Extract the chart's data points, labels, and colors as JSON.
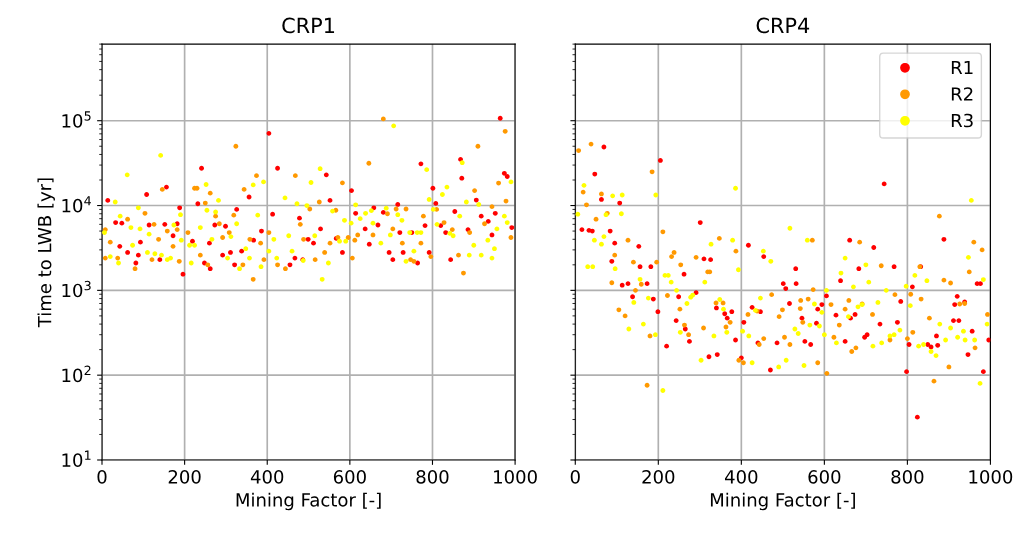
{
  "chart_data": [
    {
      "type": "scatter",
      "title": "CRP1",
      "xlabel": "Mining Factor [-]",
      "ylabel": "Time to LWB [yr]",
      "log": "y",
      "grid": true,
      "marker": "circle",
      "xlim": [
        0,
        1000
      ],
      "xticks": [
        0,
        200,
        400,
        600,
        800,
        1000
      ],
      "ylim": [
        10,
        800000
      ],
      "yticks": [
        {
          "value": 10,
          "label": "10$^{1}$"
        },
        {
          "value": 100,
          "label": "10$^{2}$"
        },
        {
          "value": 1000,
          "label": "10$^{3}$"
        },
        {
          "value": 10000,
          "label": "10$^{4}$"
        },
        {
          "value": 100000,
          "label": "10$^{5}$"
        }
      ],
      "series": [
        {
          "color": "#ff0000",
          "x": [
            14,
            33,
            48,
            108,
            114,
            43,
            62,
            82,
            88,
            93,
            140,
            152,
            156,
            172,
            182,
            188,
            196,
            219,
            232,
            241,
            248,
            260,
            262,
            273,
            292,
            299,
            311,
            321,
            326,
            338,
            356,
            367,
            386,
            404,
            413,
            425,
            455,
            467,
            478,
            486,
            499,
            512,
            529,
            543,
            552,
            567,
            582,
            604,
            614,
            637,
            647,
            658,
            668,
            681,
            695,
            704,
            716,
            721,
            729,
            750,
            764,
            772,
            782,
            792,
            801,
            808,
            820,
            832,
            844,
            854,
            868,
            871,
            886,
            906,
            918,
            935,
            944,
            952,
            964,
            974,
            981,
            992
          ],
          "values": [
            11500,
            6300,
            6200,
            13500,
            5900,
            3300,
            2800,
            2100,
            2600,
            3700,
            2300,
            6000,
            16500,
            4400,
            6100,
            9400,
            1550,
            3800,
            10500,
            27500,
            2100,
            3600,
            1800,
            5900,
            2600,
            5700,
            2800,
            2000,
            9000,
            2900,
            12600,
            3900,
            5000,
            71000,
            7900,
            27500,
            2000,
            2400,
            7100,
            2300,
            4000,
            3600,
            5300,
            23000,
            11500,
            4100,
            2800,
            15000,
            8100,
            5300,
            3500,
            9400,
            5900,
            8300,
            2800,
            2300,
            10300,
            4800,
            2800,
            4800,
            2100,
            31000,
            5800,
            2800,
            16000,
            10600,
            5800,
            4800,
            2300,
            8500,
            35000,
            21000,
            5200,
            11600,
            7500,
            6500,
            4500,
            8100,
            107000,
            24000,
            22000,
            5500
          ]
        },
        {
          "color": "#ff9900",
          "x": [
            8,
            20,
            8,
            38,
            62,
            80,
            104,
            121,
            126,
            137,
            146,
            158,
            172,
            182,
            187,
            208,
            224,
            230,
            238,
            250,
            262,
            256,
            275,
            284,
            292,
            308,
            319,
            324,
            341,
            344,
            358,
            366,
            374,
            384,
            392,
            404,
            425,
            444,
            468,
            480,
            488,
            503,
            516,
            526,
            539,
            552,
            566,
            571,
            582,
            596,
            606,
            612,
            619,
            646,
            656,
            681,
            691,
            704,
            712,
            727,
            736,
            747,
            755,
            772,
            778,
            796,
            810,
            828,
            848,
            863,
            875,
            890,
            902,
            910,
            926,
            944,
            960,
            976,
            978,
            990
          ],
          "values": [
            5200,
            3700,
            2400,
            2400,
            6900,
            1800,
            8100,
            2300,
            6000,
            4000,
            15500,
            5000,
            3300,
            5200,
            2200,
            4800,
            16000,
            16000,
            2600,
            10700,
            14000,
            2000,
            7500,
            6100,
            4200,
            4800,
            7700,
            50000,
            2000,
            15500,
            4000,
            1350,
            22500,
            3600,
            2300,
            4800,
            2000,
            1800,
            22500,
            6000,
            4000,
            9100,
            2300,
            11000,
            2800,
            3600,
            8800,
            4200,
            18500,
            4200,
            2400,
            3900,
            4500,
            31500,
            4500,
            105000,
            8000,
            5300,
            9100,
            3600,
            9100,
            2300,
            2200,
            3600,
            7500,
            2500,
            9000,
            6300,
            5200,
            2600,
            1600,
            4800,
            15000,
            50000,
            6100,
            9700,
            18400,
            75000,
            11300,
            4200
          ]
        },
        {
          "color": "#ffff00",
          "x": [
            6,
            20,
            32,
            40,
            44,
            61,
            70,
            74,
            88,
            92,
            110,
            114,
            128,
            142,
            144,
            158,
            166,
            174,
            190,
            192,
            212,
            216,
            224,
            238,
            252,
            254,
            266,
            275,
            282,
            304,
            312,
            326,
            333,
            348,
            357,
            366,
            377,
            385,
            391,
            404,
            416,
            423,
            443,
            452,
            460,
            472,
            487,
            496,
            506,
            515,
            528,
            533,
            548,
            558,
            575,
            587,
            590,
            603,
            614,
            625,
            638,
            652,
            656,
            675,
            688,
            698,
            706,
            716,
            726,
            736,
            745,
            755,
            763,
            772,
            786,
            792,
            802,
            811,
            824,
            835,
            842,
            850,
            866,
            872,
            882,
            889,
            900,
            912,
            918,
            934,
            944,
            950,
            956,
            974,
            981,
            990
          ],
          "values": [
            4800,
            2500,
            11000,
            2100,
            7500,
            23000,
            5500,
            3400,
            9400,
            5300,
            2800,
            4600,
            2700,
            39000,
            2600,
            2300,
            2400,
            5900,
            7800,
            3900,
            3400,
            2100,
            3400,
            5500,
            17700,
            8800,
            4000,
            8400,
            11500,
            2400,
            4300,
            6100,
            1800,
            3100,
            2400,
            17500,
            7700,
            1900,
            19000,
            2900,
            4000,
            2400,
            12300,
            4400,
            2900,
            10500,
            2250,
            10000,
            18700,
            4400,
            27200,
            1350,
            2100,
            8600,
            3800,
            6700,
            3800,
            6200,
            10200,
            7000,
            8100,
            8700,
            6200,
            3600,
            9300,
            4500,
            87000,
            7800,
            6700,
            2200,
            4800,
            2900,
            4800,
            4800,
            26500,
            11800,
            9000,
            6000,
            13500,
            16500,
            4700,
            4400,
            7500,
            32000,
            11000,
            2600,
            3400,
            10300,
            2600,
            3900,
            2400,
            3100,
            5300,
            7500,
            6300,
            19000
          ]
        }
      ]
    },
    {
      "type": "scatter",
      "title": "CRP4",
      "xlabel": "Mining Factor [-]",
      "log": "y",
      "grid": true,
      "marker": "circle",
      "legend": "top right",
      "tick_labels": "x",
      "xlim": [
        0,
        1000
      ],
      "xticks": [
        0,
        200,
        400,
        600,
        800,
        1000
      ],
      "ylim": [
        10,
        800000
      ],
      "yticks": [
        {
          "value": 10,
          "label": null
        },
        {
          "value": 100,
          "label": null
        },
        {
          "value": 1000,
          "label": null
        },
        {
          "value": 10000,
          "label": null
        },
        {
          "value": 100000,
          "label": null
        }
      ],
      "series": [
        {
          "name": "R1",
          "color": "#ff0000",
          "x": [
            69,
            47,
            63,
            107,
            16,
            33,
            41,
            84,
            95,
            88,
            113,
            127,
            138,
            153,
            156,
            173,
            182,
            188,
            199,
            205,
            220,
            243,
            249,
            262,
            265,
            275,
            291,
            301,
            310,
            326,
            322,
            340,
            342,
            360,
            366,
            377,
            386,
            400,
            406,
            417,
            426,
            440,
            446,
            454,
            470,
            486,
            501,
            507,
            516,
            531,
            532,
            546,
            553,
            567,
            581,
            584,
            594,
            605,
            628,
            639,
            650,
            661,
            663,
            674,
            683,
            697,
            703,
            719,
            734,
            744,
            768,
            776,
            784,
            798,
            804,
            812,
            824,
            832,
            849,
            857,
            870,
            873,
            888,
            911,
            914,
            920,
            924,
            938,
            946,
            956,
            968,
            976,
            983,
            996
          ],
          "values": [
            49000,
            23500,
            11800,
            10700,
            5200,
            5100,
            5000,
            5000,
            3600,
            2200,
            1150,
            1200,
            840,
            3300,
            1900,
            1200,
            1900,
            790,
            560,
            34000,
            220,
            440,
            840,
            1550,
            350,
            250,
            940,
            6300,
            2350,
            2300,
            165,
            620,
            175,
            530,
            470,
            560,
            260,
            160,
            420,
            3400,
            630,
            240,
            560,
            2500,
            115,
            240,
            1200,
            1050,
            700,
            1800,
            1200,
            470,
            250,
            230,
            410,
            600,
            680,
            860,
            510,
            1300,
            250,
            3900,
            470,
            520,
            1800,
            280,
            300,
            3200,
            400,
            18000,
            1900,
            420,
            740,
            110,
            230,
            1100,
            32,
            1900,
            230,
            215,
            290,
            225,
            4000,
            440,
            680,
            850,
            440,
            730,
            175,
            330,
            1200,
            1200,
            110,
            260
          ]
        },
        {
          "name": "R2",
          "color": "#ff9900",
          "x": [
            8,
            38,
            19,
            27,
            63,
            50,
            77,
            95,
            88,
            105,
            120,
            127,
            140,
            145,
            159,
            180,
            173,
            185,
            196,
            211,
            222,
            232,
            238,
            254,
            252,
            263,
            273,
            291,
            309,
            319,
            324,
            339,
            347,
            356,
            363,
            373,
            387,
            394,
            405,
            416,
            438,
            443,
            454,
            473,
            491,
            499,
            504,
            517,
            543,
            542,
            548,
            561,
            571,
            573,
            584,
            606,
            616,
            623,
            636,
            650,
            659,
            666,
            676,
            685,
            691,
            716,
            737,
            758,
            770,
            800,
            808,
            813,
            830,
            833,
            853,
            864,
            877,
            888,
            904,
            900,
            926,
            938,
            949,
            960,
            963,
            980,
            993
          ],
          "values": [
            44500,
            53000,
            14400,
            10200,
            13700,
            6900,
            8100,
            2600,
            1230,
            590,
            500,
            3900,
            2150,
            1000,
            1180,
            290,
            76,
            25000,
            2150,
            4900,
            870,
            2500,
            2800,
            2000,
            600,
            390,
            300,
            2450,
            360,
            1650,
            1650,
            710,
            4100,
            710,
            370,
            420,
            2900,
            150,
            140,
            520,
            570,
            230,
            270,
            890,
            490,
            590,
            280,
            230,
            760,
            610,
            420,
            790,
            3900,
            1020,
            140,
            105,
            680,
            280,
            390,
            600,
            760,
            190,
            210,
            3700,
            690,
            520,
            1950,
            260,
            890,
            270,
            900,
            320,
            1900,
            790,
            470,
            85,
            7500,
            1320,
            1220,
            125,
            690,
            700,
            1650,
            3700,
            210,
            3000,
            520
          ]
        },
        {
          "name": "R3",
          "color": "#ffff00",
          "x": [
            6,
            21,
            46,
            63,
            69,
            74,
            90,
            96,
            113,
            111,
            30,
            42,
            129,
            141,
            156,
            164,
            176,
            194,
            193,
            211,
            216,
            224,
            231,
            244,
            253,
            269,
            278,
            283,
            303,
            312,
            327,
            334,
            348,
            357,
            365,
            379,
            386,
            393,
            403,
            418,
            426,
            434,
            446,
            453,
            471,
            490,
            508,
            517,
            529,
            537,
            551,
            559,
            565,
            576,
            588,
            594,
            600,
            605,
            629,
            640,
            650,
            658,
            670,
            681,
            691,
            700,
            707,
            717,
            729,
            738,
            749,
            758,
            768,
            782,
            797,
            807,
            818,
            827,
            839,
            847,
            857,
            869,
            878,
            892,
            904,
            921,
            935,
            939,
            947,
            954,
            962,
            975,
            983,
            992
          ],
          "values": [
            7900,
            17300,
            3900,
            3500,
            4300,
            7800,
            13000,
            1800,
            13300,
            8000,
            1900,
            1900,
            350,
            720,
            1350,
            400,
            810,
            13300,
            300,
            66,
            1500,
            1500,
            1250,
            1000,
            320,
            700,
            830,
            880,
            150,
            1250,
            3500,
            290,
            780,
            600,
            320,
            3900,
            16000,
            1750,
            330,
            290,
            140,
            580,
            810,
            2900,
            2200,
            125,
            150,
            5400,
            350,
            310,
            130,
            3900,
            390,
            690,
            380,
            550,
            300,
            1000,
            240,
            1600,
            2400,
            490,
            1100,
            640,
            680,
            2000,
            1250,
            220,
            720,
            240,
            1000,
            290,
            300,
            340,
            1120,
            660,
            1500,
            220,
            230,
            1300,
            190,
            170,
            400,
            260,
            360,
            280,
            330,
            260,
            2450,
            11500,
            260,
            80,
            1340,
            400
          ]
        }
      ]
    }
  ]
}
